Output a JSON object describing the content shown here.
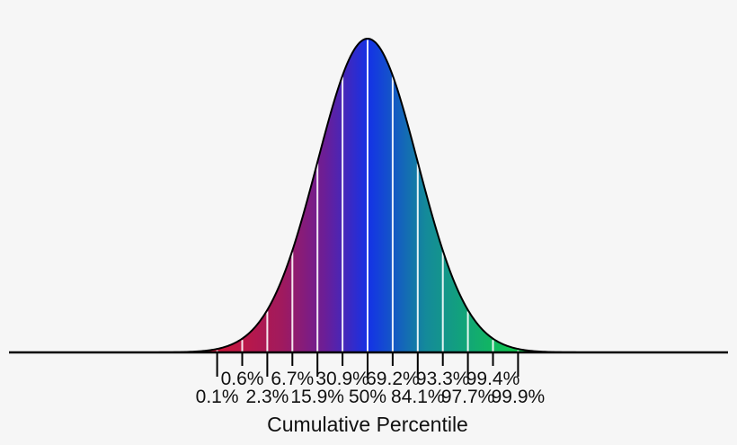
{
  "chart_data": {
    "type": "area",
    "title": "",
    "xlabel": "Cumulative Percentile",
    "ylabel": "",
    "distribution": "normal",
    "mean_sd": 0,
    "x_sd": [
      -3,
      -2.5,
      -2,
      -1.5,
      -1,
      -0.5,
      0,
      0.5,
      1,
      1.5,
      2,
      2.5,
      3
    ],
    "tick_labels": [
      "0.1%",
      "0.6%",
      "2.3%",
      "6.7%",
      "15.9%",
      "30.9%",
      "50%",
      "69.2%",
      "84.1%",
      "93.3%",
      "97.7%",
      "99.4%",
      "99.9%"
    ],
    "label_rows": [
      "low",
      "high",
      "low",
      "high",
      "low",
      "high",
      "low",
      "high",
      "low",
      "high",
      "low",
      "high",
      "low"
    ],
    "values": [
      0.1,
      0.6,
      2.3,
      6.7,
      15.9,
      30.9,
      50,
      69.2,
      84.1,
      93.3,
      97.7,
      99.4,
      99.9
    ],
    "gradient_stops": [
      {
        "offset": 0.0,
        "color": "#e8101c"
      },
      {
        "offset": 0.25,
        "color": "#e0142a"
      },
      {
        "offset": 0.38,
        "color": "#a01a5e"
      },
      {
        "offset": 0.44,
        "color": "#6a1e98"
      },
      {
        "offset": 0.5,
        "color": "#1432e6"
      },
      {
        "offset": 0.58,
        "color": "#148a9a"
      },
      {
        "offset": 0.7,
        "color": "#10c450"
      },
      {
        "offset": 1.0,
        "color": "#10ec30"
      }
    ],
    "grid": false,
    "legend": null
  }
}
